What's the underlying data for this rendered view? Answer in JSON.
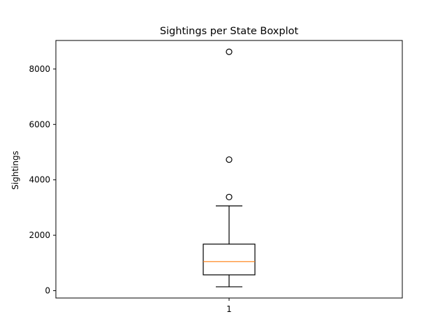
{
  "chart_data": {
    "type": "boxplot",
    "title": "Sightings per State Boxplot",
    "xlabel": "",
    "ylabel": "Sightings",
    "ylim": [
      -265,
      9030
    ],
    "yticks": [
      0,
      2000,
      4000,
      6000,
      8000
    ],
    "categories": [
      "1"
    ],
    "boxes": [
      {
        "category": "1",
        "whisker_low": 140,
        "q1": 570,
        "median": 1050,
        "q3": 1680,
        "whisker_high": 3060,
        "outliers": [
          3380,
          4730,
          8620
        ]
      }
    ],
    "grid": false,
    "colors": {
      "box": "#000000",
      "median": "#ff7f0e",
      "outlier": "#000000"
    }
  }
}
